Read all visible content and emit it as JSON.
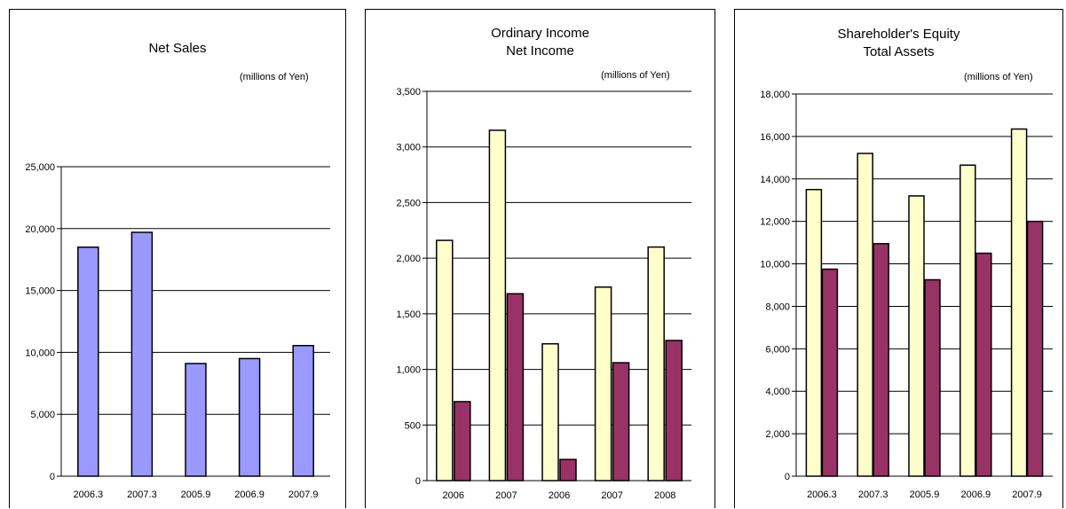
{
  "colors": {
    "net_sales": "#9999ff",
    "primary_series": "#ffffcc",
    "secondary_series": "#993366",
    "grid": "#000000"
  },
  "chart_data": [
    {
      "type": "bar",
      "title": "Net Sales",
      "title_lines": [
        "Net Sales"
      ],
      "unit_label": "(millions of Yen)",
      "categories": [
        "2006.3",
        "2007.3",
        "2005.9",
        "2006.9",
        "2007.9"
      ],
      "series": [
        {
          "values": [
            18500,
            19700,
            9100,
            9500,
            10550
          ]
        }
      ],
      "ylim": [
        0,
        25000
      ],
      "yticks": [
        0,
        5000,
        10000,
        15000,
        20000,
        25000
      ],
      "ytick_labels": [
        "0",
        "5,000",
        "10,000",
        "15,000",
        "20,000",
        "25,000"
      ],
      "grid": true
    },
    {
      "type": "bar",
      "title": "Ordinary Income\nNet Income",
      "title_lines": [
        "Ordinary Income",
        "Net Income"
      ],
      "unit_label": "(millions of Yen)",
      "categories": [
        "2006",
        "2007",
        "2006",
        "2007",
        "2008"
      ],
      "series": [
        {
          "name": "Ordinary Income",
          "values": [
            2160,
            3150,
            1230,
            1740,
            2100
          ]
        },
        {
          "name": "Net Income",
          "values": [
            710,
            1680,
            190,
            1060,
            1260
          ]
        }
      ],
      "ylim": [
        0,
        3500
      ],
      "yticks": [
        0,
        500,
        1000,
        1500,
        2000,
        2500,
        3000,
        3500
      ],
      "ytick_labels": [
        "0",
        "500",
        "1,000",
        "1,500",
        "2,000",
        "2,500",
        "3,000",
        "3,500"
      ],
      "grid": true
    },
    {
      "type": "bar",
      "title": "Shareholder's Equity\nTotal Assets",
      "title_lines": [
        "Shareholder's Equity",
        "Total Assets"
      ],
      "unit_label": "(millions of Yen)",
      "categories": [
        "2006.3",
        "2007.3",
        "2005.9",
        "2006.9",
        "2007.9"
      ],
      "series": [
        {
          "name": "Shareholder's Equity",
          "values": [
            13500,
            15200,
            13200,
            14650,
            16350
          ]
        },
        {
          "name": "Total Assets",
          "values": [
            9750,
            10950,
            9250,
            10500,
            12000
          ]
        }
      ],
      "ylim": [
        0,
        18000
      ],
      "yticks": [
        0,
        2000,
        4000,
        6000,
        8000,
        10000,
        12000,
        14000,
        16000,
        18000
      ],
      "ytick_labels": [
        "0",
        "2,000",
        "4,000",
        "6,000",
        "8,000",
        "10,000",
        "12,000",
        "14,000",
        "16,000",
        "18,000"
      ],
      "grid": true
    }
  ]
}
